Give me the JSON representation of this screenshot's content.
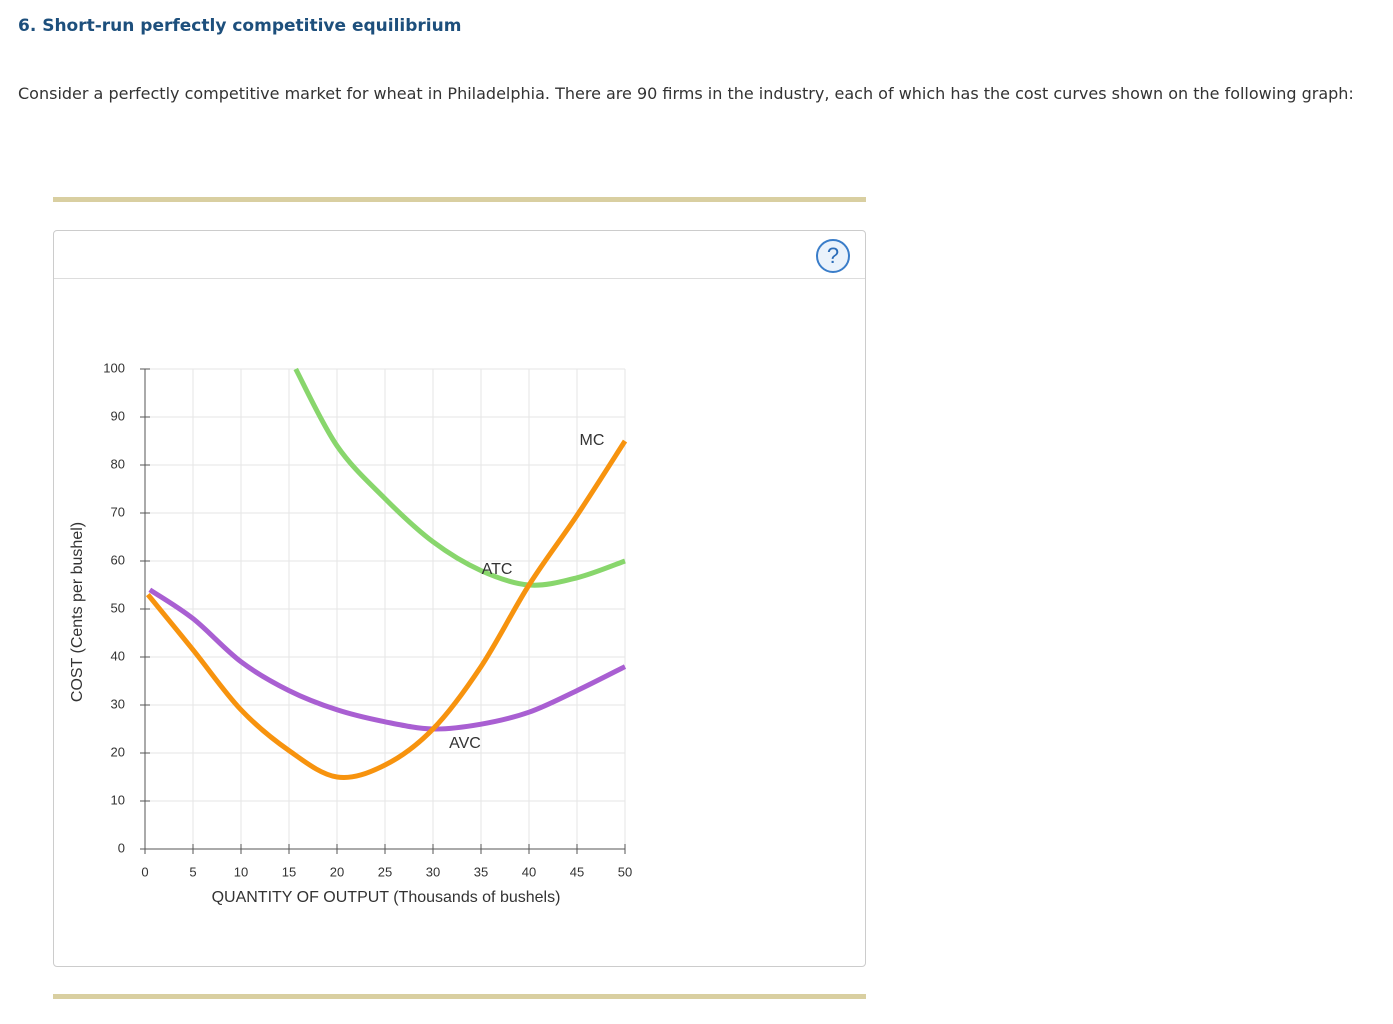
{
  "header": {
    "title": "6. Short-run perfectly competitive equilibrium"
  },
  "body": {
    "paragraph": "Consider a perfectly competitive market for wheat in Philadelphia. There are 90 firms in the industry, each of which has the cost curves shown on the following graph:"
  },
  "help_icon": "?",
  "chart_data": {
    "type": "line",
    "x_label": "QUANTITY OF OUTPUT (Thousands of bushels)",
    "y_label": "COST (Cents per bushel)",
    "xlim": [
      0,
      50
    ],
    "ylim": [
      0,
      100
    ],
    "xticks": [
      0,
      5,
      10,
      15,
      20,
      25,
      30,
      35,
      40,
      45,
      50
    ],
    "yticks": [
      0,
      10,
      20,
      30,
      40,
      50,
      60,
      70,
      80,
      90,
      100
    ],
    "grid": true,
    "series": [
      {
        "name": "ATC",
        "color": "#88d66c",
        "x": [
          15.7,
          20,
          25,
          30,
          35,
          40,
          45,
          50
        ],
        "values": [
          100,
          84,
          73,
          64,
          58,
          55,
          56.5,
          60
        ]
      },
      {
        "name": "AVC",
        "color": "#a95fd2",
        "x": [
          0.5,
          5,
          10,
          15,
          20,
          25,
          30,
          35,
          40,
          45,
          50
        ],
        "values": [
          54,
          48,
          39,
          33,
          29,
          26.5,
          25,
          26,
          28.5,
          33,
          38
        ]
      },
      {
        "name": "MC",
        "color": "#f7930e",
        "x": [
          0.3,
          5,
          10,
          15,
          20,
          25,
          30,
          35,
          40,
          45,
          50
        ],
        "values": [
          53,
          41.5,
          29,
          20.5,
          15,
          17.5,
          25,
          38,
          55,
          69.5,
          85
        ]
      }
    ]
  }
}
